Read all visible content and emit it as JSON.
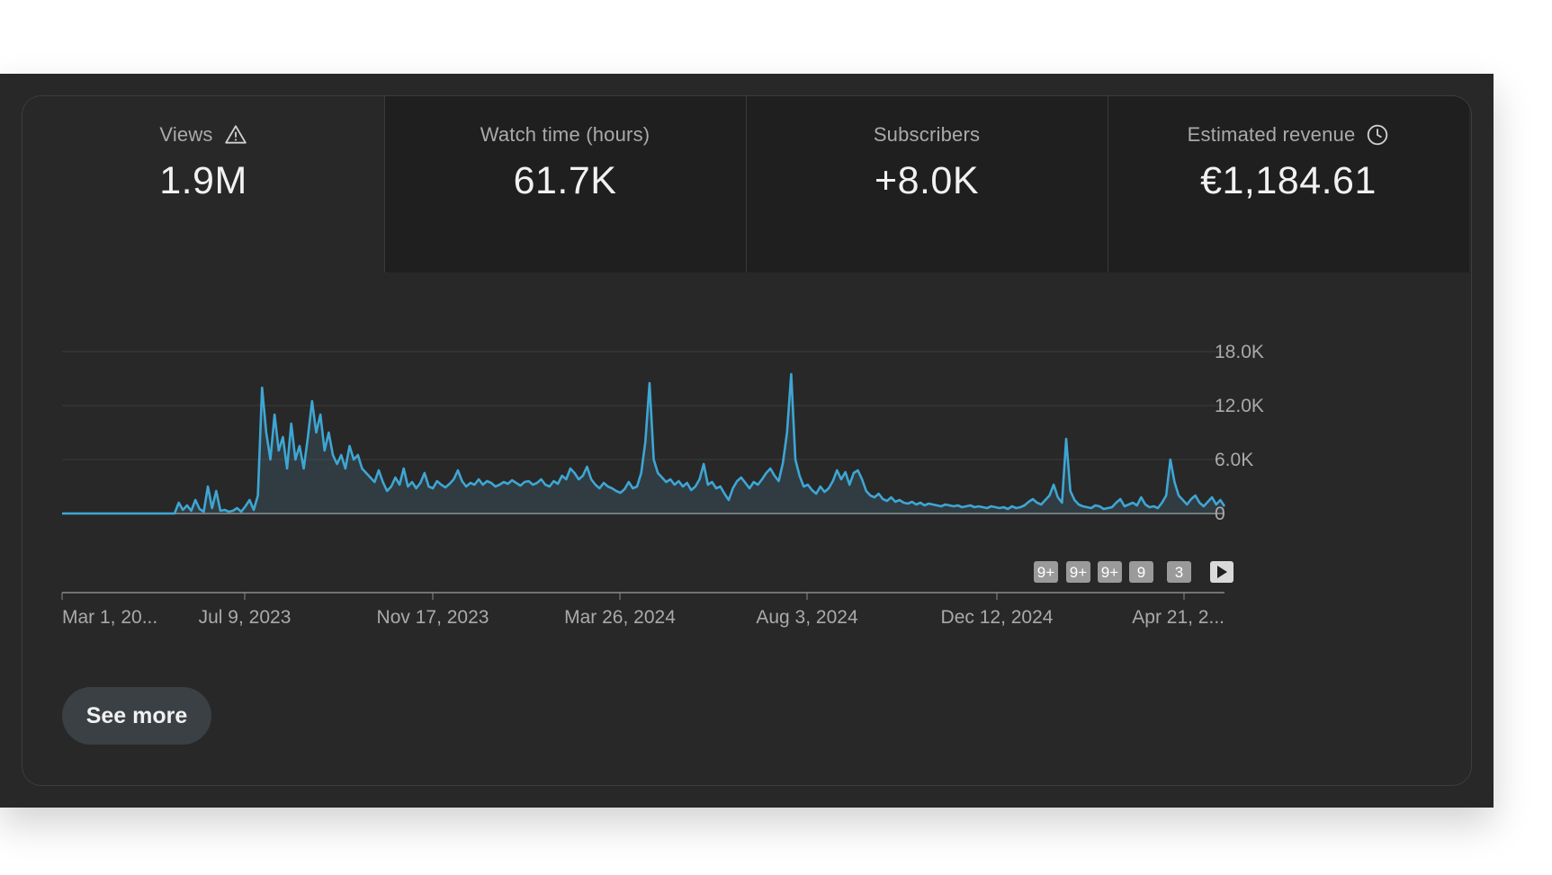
{
  "tabs": [
    {
      "label": "Views",
      "value": "1.9M",
      "icon": "warning-triangle-icon",
      "active": true
    },
    {
      "label": "Watch time (hours)",
      "value": "61.7K",
      "active": false
    },
    {
      "label": "Subscribers",
      "value": "+8.0K",
      "active": false
    },
    {
      "label": "Estimated revenue",
      "value": "€1,184.61",
      "icon": "clock-icon",
      "active": false
    }
  ],
  "see_more_label": "See more",
  "badges": [
    "9+",
    "9+",
    "9+",
    "9",
    "3"
  ],
  "colors": {
    "line": "#3ea6d4",
    "panel": "#282828",
    "tab_inactive": "#1f1f1f"
  },
  "chart_data": {
    "type": "area",
    "series": [
      {
        "values": [
          0,
          0,
          0,
          0,
          0,
          0,
          0,
          0,
          0,
          0,
          0,
          0,
          0,
          0,
          0,
          0,
          0,
          0,
          0,
          0,
          0,
          0,
          0,
          0,
          0,
          0,
          0,
          0,
          1200,
          400,
          900,
          300,
          1500,
          500,
          200,
          3000,
          600,
          2500,
          300,
          400,
          200,
          300,
          600,
          200,
          800,
          1500,
          400,
          2000,
          14000,
          9000,
          6000,
          11000,
          7000,
          8500,
          5000,
          10000,
          6000,
          7500,
          5000,
          8500,
          12500,
          9000,
          11000,
          7000,
          9000,
          6500,
          5500,
          6500,
          5000,
          7500,
          6000,
          6500,
          5000,
          4500,
          4000,
          3500,
          4800,
          3500,
          2500,
          3000,
          4000,
          3200,
          5000,
          3000,
          3500,
          2800,
          3400,
          4500,
          3000,
          2800,
          3600,
          3200,
          2900,
          3300,
          3800,
          4800,
          3600,
          3000,
          3400,
          3200,
          3800,
          3200,
          3600,
          3400,
          3000,
          3200,
          3500,
          3300,
          3700,
          3400,
          3100,
          3500,
          3600,
          3200,
          3400,
          3800,
          3200,
          3000,
          3600,
          3300,
          4200,
          3800,
          5000,
          4500,
          3800,
          4200,
          5200,
          3800,
          3200,
          2800,
          3400,
          3000,
          2800,
          2500,
          2300,
          2700,
          3500,
          2800,
          3000,
          4500,
          8000,
          14500,
          6000,
          4500,
          4000,
          3500,
          3800,
          3200,
          3600,
          3000,
          3400,
          2600,
          3000,
          3800,
          5500,
          3200,
          3500,
          2800,
          3000,
          2200,
          1500,
          2800,
          3600,
          4000,
          3400,
          2800,
          3500,
          3200,
          3800,
          4500,
          5000,
          4200,
          3600,
          5600,
          9000,
          15500,
          6000,
          4200,
          3000,
          3200,
          2600,
          2200,
          3000,
          2400,
          2800,
          3600,
          4800,
          3800,
          4600,
          3200,
          4500,
          4800,
          3800,
          2500,
          2000,
          1800,
          2200,
          1600,
          1400,
          1800,
          1300,
          1500,
          1200,
          1100,
          1300,
          1000,
          1200,
          900,
          1100,
          1000,
          900,
          800,
          1000,
          900,
          800,
          900,
          700,
          800,
          900,
          700,
          800,
          700,
          600,
          800,
          700,
          600,
          700,
          500,
          800,
          600,
          700,
          900,
          1300,
          1600,
          1200,
          1000,
          1500,
          2000,
          3200,
          1800,
          1200,
          8300,
          2500,
          1500,
          1000,
          800,
          700,
          600,
          900,
          800,
          500,
          600,
          700,
          1200,
          1600,
          800,
          1000,
          1200,
          900,
          1800,
          1000,
          700,
          800,
          600,
          1200,
          2000,
          6000,
          3500,
          2000,
          1500,
          1000,
          1600,
          2000,
          1200,
          800,
          1300,
          1800,
          1000,
          1500,
          800
        ]
      }
    ],
    "x_tick_labels": [
      "Mar 1, 20...",
      "Jul 9, 2023",
      "Nov 17, 2023",
      "Mar 26, 2024",
      "Aug 3, 2024",
      "Dec 12, 2024",
      "Apr 21, 2..."
    ],
    "y_tick_labels": [
      "18.0K",
      "12.0K",
      "6.0K",
      "0"
    ],
    "y_ticks": [
      18000,
      12000,
      6000,
      0
    ],
    "ylim": [
      0,
      18000
    ],
    "grid": true
  }
}
